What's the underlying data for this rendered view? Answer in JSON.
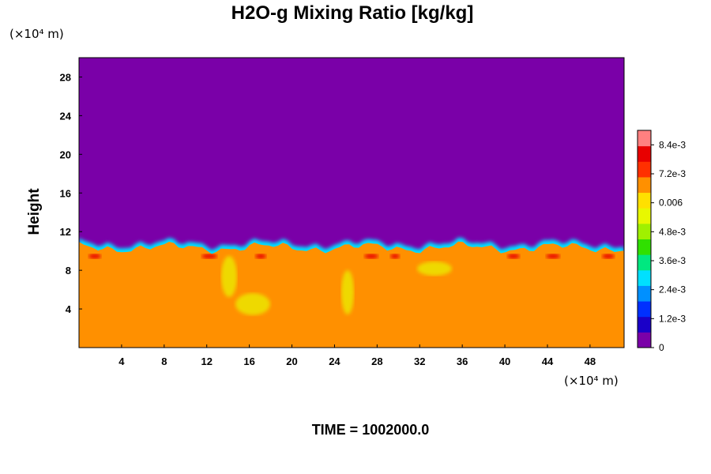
{
  "chart_data": {
    "type": "heatmap",
    "title": "H2O-g Mixing Ratio [kg/kg]",
    "ylabel": "Height",
    "x_unit": "(×10⁴ m)",
    "y_unit": "(×10⁴ m)",
    "x_ticks": [
      4,
      8,
      12,
      16,
      20,
      24,
      28,
      32,
      36,
      40,
      44,
      48
    ],
    "y_ticks": [
      4,
      8,
      12,
      16,
      20,
      24,
      28
    ],
    "xlim": [
      0,
      51.2
    ],
    "ylim": [
      0,
      30
    ],
    "colorbar": {
      "range": [
        0,
        0.009
      ],
      "tick_values": [
        0,
        0.0012,
        0.0024,
        0.0036,
        0.0048,
        0.006,
        0.0072,
        0.0084
      ],
      "tick_labels": [
        "0",
        "1.2e-3",
        "2.4e-3",
        "3.6e-3",
        "4.8e-3",
        "0.006",
        "7.2e-3",
        "8.4e-3"
      ],
      "colors": [
        "#7a00a8",
        "#1a00c8",
        "#0030ff",
        "#0090ff",
        "#00e0ff",
        "#00e880",
        "#30e000",
        "#a0f000",
        "#e8f800",
        "#ffe000",
        "#ff9000",
        "#ff3000",
        "#e80000",
        "#ff8080"
      ]
    },
    "field_summary": {
      "moist_layer_top_height": 11,
      "upper_layer_value": 0,
      "lower_layer_typical_value": 0.0065,
      "top_edge_peak_value": 0.0078
    },
    "footer": "TIME = 1002000.0"
  }
}
